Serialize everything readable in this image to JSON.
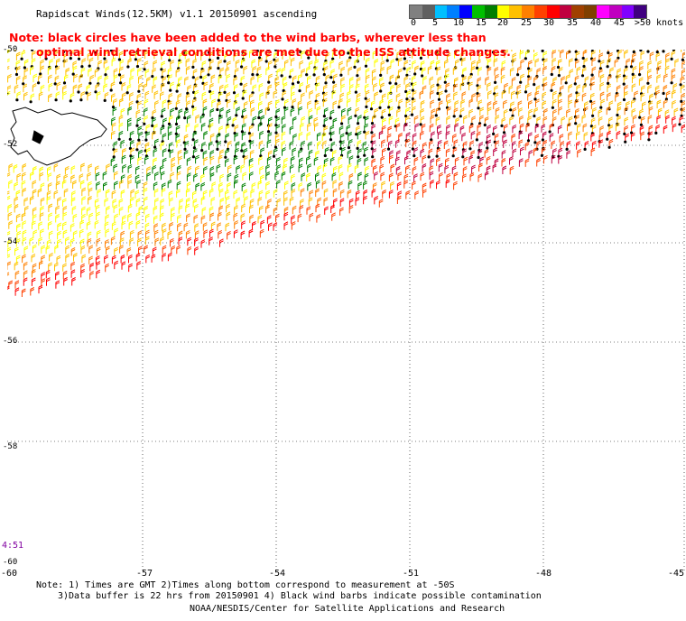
{
  "title": "Rapidscat Winds(12.5KM) v1.1 20150901 ascending",
  "note_line1": "Note: black circles have been added to the wind barbs, wherever less than",
  "note_line2": "optimal wind retrieval conditions are met due to the ISS attitude changes.",
  "legend": {
    "colors": [
      "#808080",
      "#606060",
      "#00c0ff",
      "#0080ff",
      "#0000ff",
      "#00c000",
      "#008000",
      "#ffff00",
      "#ffc000",
      "#ff8000",
      "#ff4000",
      "#ff0000",
      "#c00040",
      "#a04000",
      "#804000",
      "#ff00ff",
      "#c000c0",
      "#8000ff",
      "#400080"
    ],
    "labels": [
      "0",
      "5",
      "10",
      "15",
      "20",
      "25",
      "30",
      "35",
      "40",
      "45",
      ">50 knots"
    ]
  },
  "axes": {
    "lat_labels": [
      "-50",
      "-52",
      "-54",
      "-56",
      "-58",
      "-60"
    ],
    "lon_labels": [
      "-60",
      "-57",
      "-54",
      "-51",
      "-48",
      "-45"
    ]
  },
  "time_label": "4:51",
  "footer": {
    "line1": "Note: 1) Times are GMT 2)Times along bottom correspond to measurement at -50S",
    "line2": "3)Data buffer is 22 hrs from 20150901 4) Black wind barbs indicate possible contamination",
    "line3": "NOAA/NESDIS/Center for Satellite Applications and Research"
  }
}
